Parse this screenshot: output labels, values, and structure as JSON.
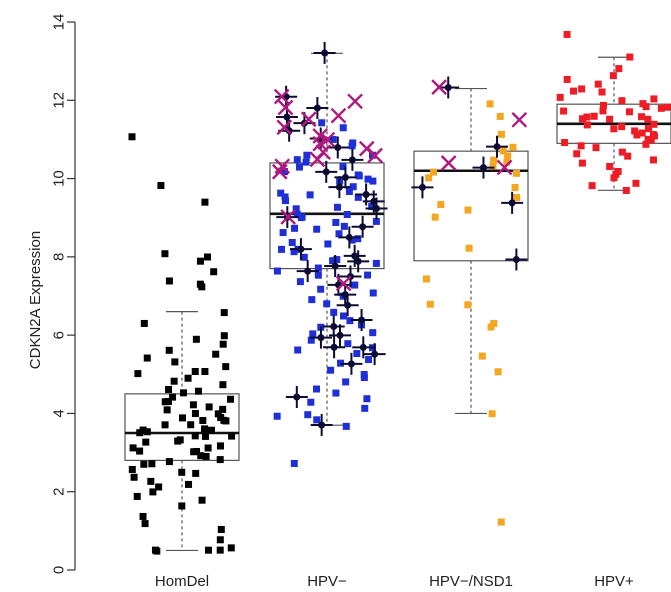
{
  "chart_data": {
    "type": "box-strip",
    "ylabel": "CDKN2A Expression",
    "xlabel": "",
    "ylim": [
      0,
      14
    ],
    "yticks": [
      0,
      2,
      4,
      6,
      8,
      10,
      12,
      14
    ],
    "categories": [
      "HomDel",
      "HPV−",
      "HPV−/NSD1",
      "HPV+"
    ],
    "colors": {
      "HomDel": "#000000",
      "HPV−": "#1f2fd8",
      "HPV−/NSD1": "#f4a621",
      "HPV+": "#ee1c24",
      "marker_plus": "#0b0b33",
      "marker_x": "#b0177f",
      "box_line": "#555555"
    },
    "boxes": [
      {
        "group": "HomDel",
        "whisker_low": 0.5,
        "q1": 2.8,
        "median": 3.5,
        "q3": 4.5,
        "whisker_high": 6.6
      },
      {
        "group": "HPV−",
        "whisker_low": 3.7,
        "q1": 7.7,
        "median": 9.1,
        "q3": 10.4,
        "whisker_high": 13.2
      },
      {
        "group": "HPV−/NSD1",
        "whisker_low": 4.0,
        "q1": 7.9,
        "median": 10.2,
        "q3": 10.7,
        "whisker_high": 12.3
      },
      {
        "group": "HPV+",
        "whisker_low": 9.7,
        "q1": 10.9,
        "median": 11.4,
        "q3": 11.9,
        "whisker_high": 13.1
      }
    ],
    "series": [
      {
        "group": "HomDel",
        "marker": "square",
        "values": [
          11.1,
          9.8,
          9.4,
          8.1,
          8.0,
          7.9,
          7.6,
          7.4,
          7.2,
          7.3,
          6.6,
          6.3,
          6.0,
          5.9,
          5.8,
          5.6,
          5.5,
          5.4,
          5.3,
          5.2,
          5.1,
          5.0,
          4.9,
          4.8,
          4.7,
          4.6,
          4.6,
          4.5,
          4.4,
          4.3,
          4.3,
          4.2,
          4.1,
          4.0,
          4.0,
          3.9,
          3.8,
          3.8,
          3.7,
          3.7,
          3.6,
          3.6,
          3.5,
          3.5,
          3.4,
          3.4,
          3.3,
          3.3,
          3.2,
          3.2,
          3.1,
          3.1,
          3.0,
          3.0,
          2.9,
          2.9,
          2.8,
          2.8,
          2.7,
          2.6,
          2.5,
          2.4,
          2.3,
          2.2,
          2.1,
          2.0,
          1.9,
          1.8,
          1.6,
          1.4,
          1.2,
          1.0,
          0.8,
          0.6,
          0.5,
          0.5,
          0.5,
          0.5,
          3.9,
          4.1,
          3.4,
          3.6,
          2.7,
          4.4,
          5.1,
          3.8,
          3.0,
          2.5,
          4.2,
          3.3
        ]
      },
      {
        "group": "HPV−",
        "marker": "square",
        "values": [
          11.4,
          11.3,
          11.0,
          10.9,
          10.8,
          10.6,
          10.5,
          10.4,
          10.3,
          10.2,
          10.1,
          10.0,
          9.9,
          9.8,
          9.7,
          9.6,
          9.5,
          9.4,
          9.3,
          9.2,
          9.1,
          9.0,
          8.9,
          8.8,
          8.7,
          8.6,
          8.5,
          8.4,
          8.3,
          8.2,
          8.1,
          8.0,
          7.9,
          7.8,
          7.7,
          7.6,
          7.5,
          7.4,
          7.3,
          7.2,
          7.1,
          7.0,
          6.9,
          6.8,
          6.6,
          6.5,
          6.4,
          6.3,
          6.2,
          6.1,
          6.0,
          5.9,
          5.8,
          5.7,
          5.6,
          5.5,
          5.4,
          5.3,
          5.1,
          5.0,
          4.9,
          4.8,
          4.6,
          4.5,
          4.4,
          4.3,
          4.1,
          4.0,
          3.9,
          3.8,
          3.7,
          2.7,
          9.3,
          8.7,
          9.9,
          10.1,
          8.4,
          9.6,
          10.6,
          8.9,
          9.1,
          7.9,
          8.2,
          10.3,
          9.0,
          8.6,
          9.5,
          7.5
        ]
      },
      {
        "group": "HPV−/NSD1",
        "marker": "square",
        "values": [
          11.9,
          11.6,
          11.1,
          10.8,
          10.7,
          10.6,
          10.5,
          10.4,
          10.3,
          10.2,
          10.1,
          10.0,
          9.8,
          9.5,
          9.3,
          9.2,
          9.0,
          8.2,
          7.4,
          6.8,
          6.8,
          6.3,
          6.2,
          5.5,
          5.1,
          4.0,
          1.2
        ]
      },
      {
        "group": "HPV+",
        "marker": "square",
        "values": [
          13.7,
          13.1,
          12.8,
          12.6,
          12.5,
          12.4,
          12.3,
          12.2,
          12.1,
          12.0,
          11.9,
          11.9,
          11.8,
          11.8,
          11.7,
          11.7,
          11.6,
          11.6,
          11.5,
          11.5,
          11.4,
          11.4,
          11.3,
          11.3,
          11.2,
          11.2,
          11.1,
          11.1,
          11.0,
          11.0,
          10.9,
          10.9,
          10.8,
          10.7,
          10.6,
          10.5,
          10.4,
          10.3,
          10.2,
          10.1,
          10.0,
          9.9,
          9.8,
          9.7,
          11.8,
          11.6,
          12.0,
          11.3,
          11.5,
          10.8,
          11.1,
          12.2,
          11.7,
          10.6
        ]
      }
    ],
    "highlights": [
      {
        "group": "HPV−",
        "marker": "plus",
        "values": [
          13.2,
          12.1,
          11.8,
          11.6,
          11.4,
          11.2,
          11.0,
          10.8,
          10.5,
          10.2,
          10.0,
          9.8,
          9.6,
          9.4,
          9.2,
          9.0,
          8.8,
          8.5,
          8.2,
          8.0,
          7.9,
          7.8,
          7.6,
          7.5,
          7.3,
          7.0,
          6.8,
          6.4,
          6.2,
          6.0,
          5.9,
          5.7,
          5.5,
          5.3,
          5.7,
          4.4,
          3.7
        ]
      },
      {
        "group": "HPV−",
        "marker": "x",
        "values": [
          12.1,
          12.0,
          11.8,
          11.6,
          11.5,
          11.3,
          11.1,
          11.0,
          10.9,
          10.8,
          10.7,
          10.6,
          10.5,
          10.3,
          10.2,
          9.0,
          7.3
        ]
      },
      {
        "group": "HPV−/NSD1",
        "marker": "plus",
        "values": [
          12.3,
          10.8,
          10.3,
          9.8,
          9.4,
          7.9
        ]
      },
      {
        "group": "HPV−/NSD1",
        "marker": "x",
        "values": [
          12.3,
          11.5,
          10.4,
          10.3
        ]
      }
    ]
  }
}
